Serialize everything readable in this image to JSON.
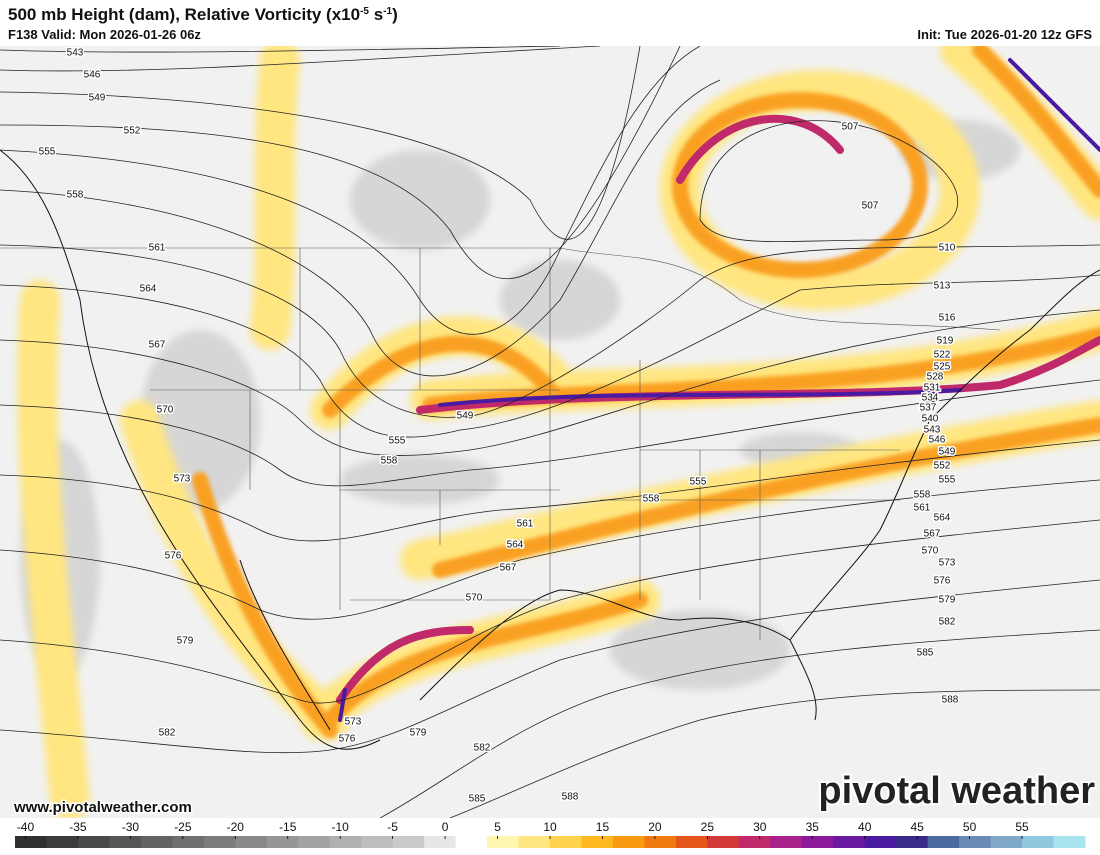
{
  "header": {
    "title": [
      "500 mb Height (dam), Relative Vorticity (x10",
      "-5",
      " s",
      "-1",
      ")"
    ],
    "valid": "F138 Valid: Mon 2026-01-26 06z",
    "init": "Init: Tue 2026-01-20 12z GFS"
  },
  "contour_labels": [
    543,
    546,
    549,
    552,
    555,
    558,
    561,
    564,
    567,
    570,
    573,
    576,
    579,
    582,
    507,
    507,
    510,
    513,
    516,
    519,
    522,
    525,
    528,
    531,
    534,
    537,
    540,
    543,
    546,
    549,
    552,
    555,
    558,
    561,
    564,
    567,
    570,
    573,
    576,
    579,
    582,
    585,
    588,
    549,
    555,
    558,
    558,
    555,
    561,
    564,
    567,
    570,
    573,
    576,
    579,
    582,
    585,
    588
  ],
  "footer": {
    "website": "www.pivotalweather.com",
    "logo": "pivotal weather"
  },
  "colorbar": {
    "range": [
      -41,
      61
    ],
    "ticks": [
      -40,
      -35,
      -30,
      -25,
      -20,
      -15,
      -10,
      -5,
      0,
      5,
      10,
      15,
      20,
      25,
      30,
      35,
      40,
      45,
      50,
      55
    ],
    "colors": [
      "#303030",
      "#3c3c3c",
      "#484848",
      "#555555",
      "#626262",
      "#6f6f6f",
      "#7c7c7c",
      "#898989",
      "#969696",
      "#a3a3a3",
      "#b0b0b0",
      "#bdbdbd",
      "#cacaca",
      "#e6e6e6",
      "#ffffff",
      "#fff6b0",
      "#ffe680",
      "#ffd34d",
      "#ffb820",
      "#f99a10",
      "#f07a10",
      "#e5561a",
      "#d23a3a",
      "#c02a6a",
      "#a8208a",
      "#8c1a9a",
      "#6a1aa0",
      "#4a1aa0",
      "#3a2a8a",
      "#4a6aa0",
      "#6a8ab8",
      "#80a8c8",
      "#90c8e0",
      "#a8e4ee"
    ]
  }
}
